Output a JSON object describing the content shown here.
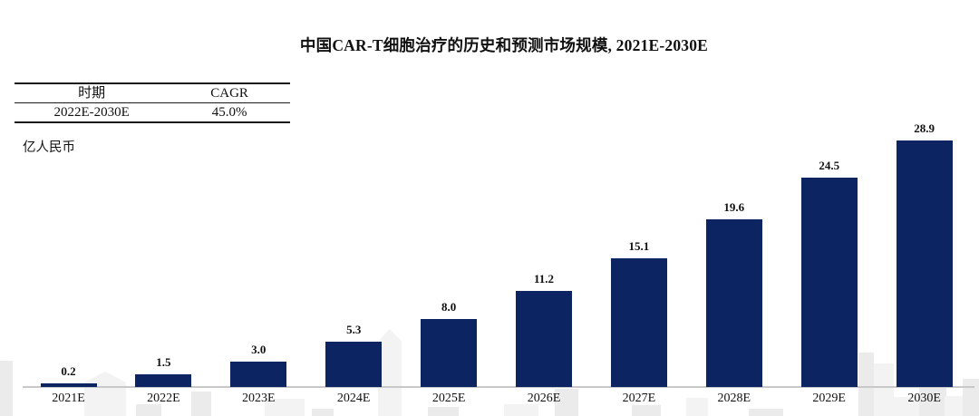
{
  "title": "中国CAR-T细胞治疗的历史和预测市场规模, 2021E-2030E",
  "cagr_table": {
    "headers": [
      "时期",
      "CAGR"
    ],
    "rows": [
      [
        "2022E-2030E",
        "45.0%"
      ]
    ]
  },
  "unit_label": "亿人民币",
  "chart_data": {
    "type": "bar",
    "title": "中国CAR-T细胞治疗的历史和预测市场规模, 2021E-2030E",
    "categories": [
      "2021E",
      "2022E",
      "2023E",
      "2024E",
      "2025E",
      "2026E",
      "2027E",
      "2028E",
      "2029E",
      "2030E"
    ],
    "values": [
      0.2,
      1.5,
      3.0,
      5.3,
      8.0,
      11.2,
      15.1,
      19.6,
      24.5,
      28.9
    ],
    "xlabel": "",
    "ylabel": "亿人民币",
    "ylim": [
      0,
      30
    ],
    "grid": false,
    "legend": false,
    "value_labels_shown": true,
    "cagr_annotation": {
      "period": "2022E-2030E",
      "value": "45.0%"
    }
  },
  "colors": {
    "bar": "#0c2461",
    "axis_line": "#c8c8c8",
    "text": "#111111",
    "watermark_dark": "#ebebeb",
    "watermark_light": "#f3f3f3",
    "background": "#ffffff"
  }
}
